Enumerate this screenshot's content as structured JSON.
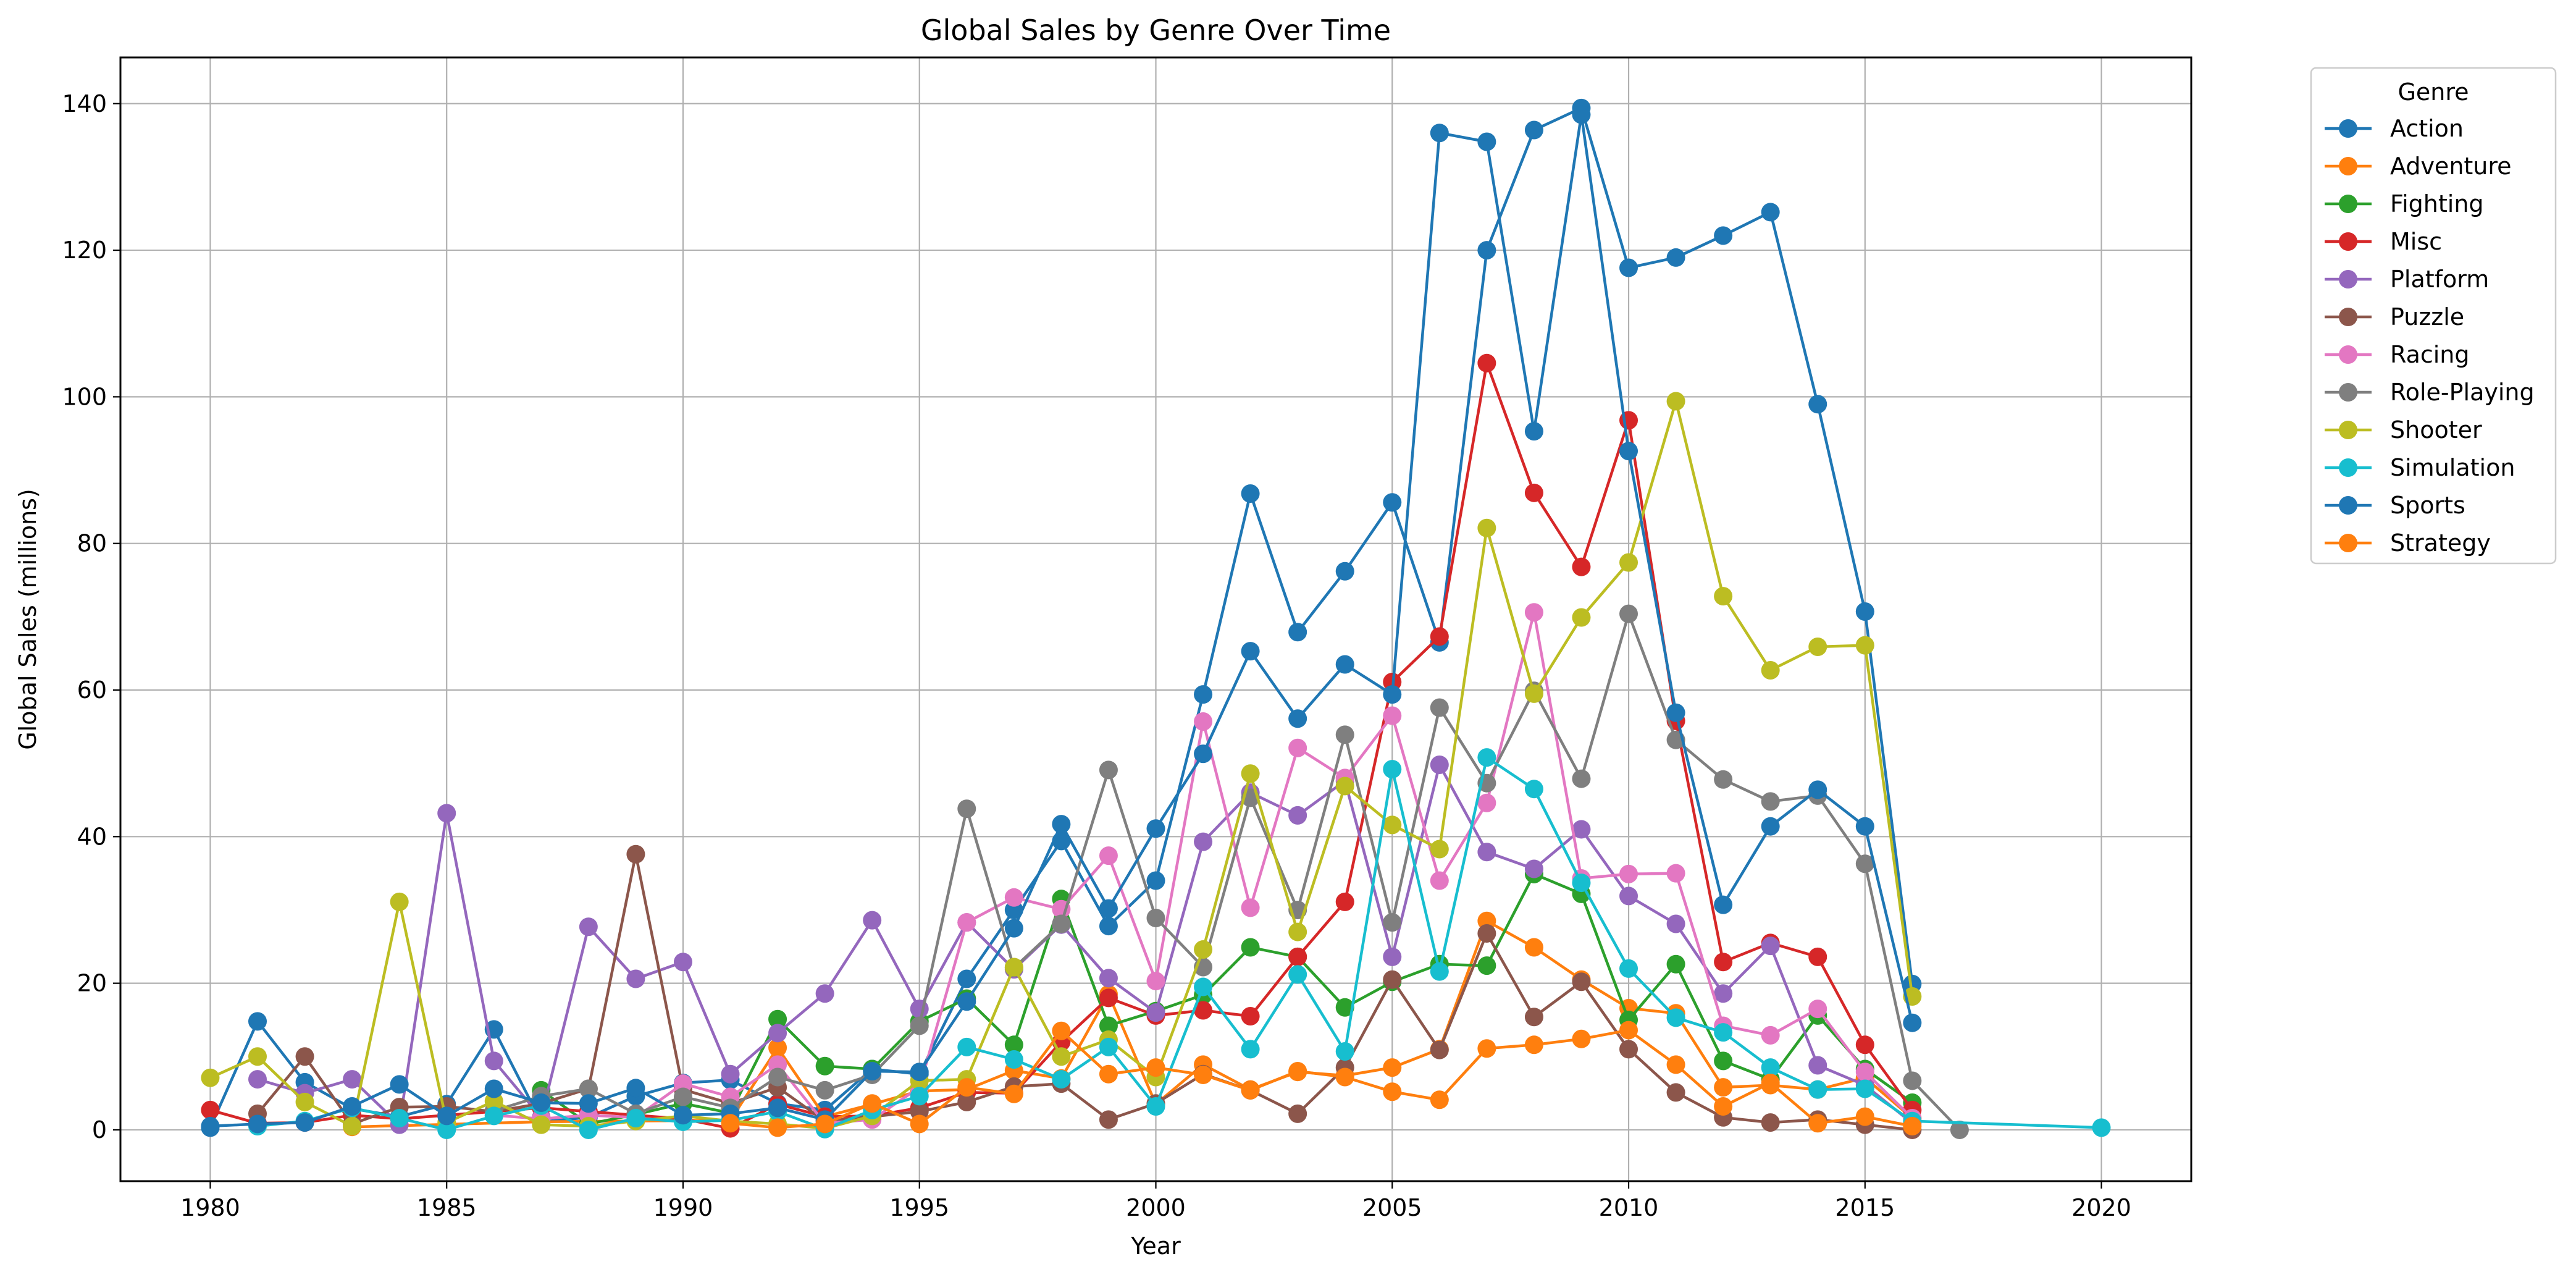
{
  "chart_data": {
    "type": "line",
    "title": "Global Sales by Genre Over Time",
    "xlabel": "Year",
    "ylabel": "Global Sales (millions)",
    "xlim": [
      1978.1,
      2021.9
    ],
    "ylim": [
      -7,
      146.3
    ],
    "xticks": [
      1980,
      1985,
      1990,
      1995,
      2000,
      2005,
      2010,
      2015,
      2020
    ],
    "yticks": [
      0,
      20,
      40,
      60,
      80,
      100,
      120,
      140
    ],
    "grid": true,
    "legend": {
      "title": "Genre",
      "placement": "outside upper right"
    },
    "series": [
      {
        "name": "Action",
        "color": "#1f77b4",
        "x": [
          1980,
          1981,
          1982,
          1983,
          1984,
          1985,
          1986,
          1987,
          1988,
          1989,
          1990,
          1991,
          1992,
          1993,
          1994,
          1995,
          1996,
          1997,
          1998,
          1999,
          2000,
          2001,
          2002,
          2003,
          2004,
          2005,
          2006,
          2007,
          2008,
          2009,
          2010,
          2011,
          2012,
          2013,
          2014,
          2015,
          2016
        ],
        "y": [
          0.3,
          14.8,
          6.5,
          2.9,
          1.8,
          3.5,
          13.7,
          1.1,
          1.7,
          4.6,
          6.4,
          6.8,
          3.6,
          2.7,
          8.3,
          7.6,
          20.6,
          30.0,
          39.4,
          27.8,
          34.0,
          59.4,
          86.8,
          67.9,
          76.2,
          85.6,
          66.5,
          120.0,
          136.4,
          139.4,
          117.6,
          119.0,
          122.0,
          125.2,
          99.0,
          70.7,
          19.9
        ]
      },
      {
        "name": "Adventure",
        "color": "#ff7f0e",
        "x": [
          1983,
          1987,
          1991,
          1992,
          1993,
          1994,
          1995,
          1996,
          1997,
          1998,
          1999,
          2000,
          2001,
          2002,
          2003,
          2004,
          2005,
          2006,
          2007,
          2008,
          2009,
          2010,
          2011,
          2012,
          2013,
          2014,
          2015,
          2016
        ],
        "y": [
          0.4,
          1.1,
          1.3,
          11.2,
          1.8,
          3.5,
          5.3,
          5.5,
          8.1,
          7.0,
          18.5,
          3.5,
          8.9,
          5.5,
          7.9,
          7.4,
          8.5,
          11.0,
          28.5,
          24.9,
          20.5,
          16.6,
          15.9,
          5.8,
          6.1,
          5.5,
          7.1,
          1.6
        ]
      },
      {
        "name": "Fighting",
        "color": "#2ca02c",
        "x": [
          1987,
          1988,
          1989,
          1990,
          1991,
          1992,
          1993,
          1994,
          1995,
          1996,
          1997,
          1998,
          1999,
          2000,
          2001,
          2002,
          2003,
          2004,
          2005,
          2006,
          2007,
          2008,
          2009,
          2010,
          2011,
          2012,
          2013,
          2014,
          2015,
          2016
        ],
        "y": [
          5.4,
          0.8,
          2.1,
          3.6,
          2.3,
          15.1,
          8.7,
          8.3,
          14.8,
          17.9,
          11.6,
          31.5,
          14.2,
          16.2,
          18.4,
          24.9,
          23.6,
          16.7,
          20.2,
          22.6,
          22.4,
          34.9,
          32.2,
          15.0,
          22.6,
          9.4,
          6.9,
          15.6,
          8.3,
          3.7
        ]
      },
      {
        "name": "Misc",
        "color": "#d62728",
        "x": [
          1980,
          1981,
          1982,
          1983,
          1984,
          1985,
          1986,
          1987,
          1988,
          1989,
          1990,
          1991,
          1992,
          1993,
          1994,
          1995,
          1996,
          1997,
          1998,
          1999,
          2000,
          2001,
          2002,
          2003,
          2004,
          2005,
          2006,
          2007,
          2008,
          2009,
          2010,
          2011,
          2012,
          2013,
          2014,
          2015,
          2016
        ],
        "y": [
          2.7,
          0.9,
          1.0,
          2.0,
          1.5,
          2.0,
          2.5,
          3.0,
          2.5,
          2.0,
          1.5,
          0.2,
          3.5,
          1.8,
          1.9,
          3.0,
          5.1,
          5.0,
          12.0,
          18.0,
          15.6,
          16.3,
          15.5,
          23.6,
          31.1,
          61.1,
          67.3,
          104.6,
          86.9,
          76.8,
          96.8,
          55.8,
          22.9,
          25.5,
          23.6,
          11.6,
          2.7
        ]
      },
      {
        "name": "Platform",
        "color": "#9467bd",
        "x": [
          1981,
          1982,
          1983,
          1984,
          1985,
          1986,
          1987,
          1988,
          1989,
          1990,
          1991,
          1992,
          1993,
          1994,
          1995,
          1996,
          1997,
          1998,
          1999,
          2000,
          2001,
          2002,
          2003,
          2004,
          2005,
          2006,
          2007,
          2008,
          2009,
          2010,
          2011,
          2012,
          2013,
          2014,
          2015,
          2016
        ],
        "y": [
          6.9,
          5.0,
          6.9,
          0.7,
          43.2,
          9.4,
          1.7,
          27.7,
          20.6,
          22.9,
          7.6,
          13.2,
          18.6,
          28.6,
          16.5,
          28.3,
          21.9,
          28.0,
          20.7,
          16.0,
          39.3,
          46.0,
          42.9,
          47.6,
          23.6,
          49.8,
          37.9,
          35.6,
          41.0,
          31.9,
          28.1,
          18.6,
          25.1,
          8.8,
          6.1,
          0.9
        ]
      },
      {
        "name": "Puzzle",
        "color": "#8c564b",
        "x": [
          1981,
          1982,
          1983,
          1984,
          1985,
          1986,
          1987,
          1988,
          1989,
          1990,
          1991,
          1992,
          1993,
          1994,
          1995,
          1996,
          1997,
          1998,
          1999,
          2000,
          2001,
          2002,
          2003,
          2004,
          2005,
          2006,
          2007,
          2008,
          2009,
          2010,
          2011,
          2012,
          2013,
          2014,
          2015,
          2016
        ],
        "y": [
          2.2,
          10.0,
          0.8,
          3.1,
          3.2,
          2.5,
          3.6,
          5.6,
          37.6,
          5.5,
          3.6,
          5.8,
          1.2,
          1.8,
          2.5,
          3.8,
          5.9,
          6.3,
          1.4,
          3.6,
          7.6,
          5.4,
          2.2,
          8.5,
          20.5,
          10.9,
          26.8,
          15.4,
          20.2,
          11.0,
          5.1,
          1.7,
          1.0,
          1.4,
          0.7,
          0.0
        ]
      },
      {
        "name": "Racing",
        "color": "#e377c2",
        "x": [
          1986,
          1987,
          1988,
          1989,
          1990,
          1991,
          1992,
          1993,
          1994,
          1995,
          1996,
          1997,
          1998,
          1999,
          2000,
          2001,
          2002,
          2003,
          2004,
          2005,
          2006,
          2007,
          2008,
          2009,
          2010,
          2011,
          2012,
          2013,
          2014,
          2015,
          2016
        ],
        "y": [
          2.0,
          1.5,
          2.0,
          1.7,
          6.3,
          4.5,
          8.9,
          0.9,
          1.4,
          5.8,
          28.3,
          31.7,
          30.1,
          37.4,
          20.3,
          55.7,
          30.3,
          52.1,
          48.0,
          56.5,
          34.0,
          44.6,
          70.6,
          34.3,
          34.9,
          35.0,
          14.2,
          12.9,
          16.5,
          7.9,
          1.6
        ]
      },
      {
        "name": "Role-Playing",
        "color": "#7f7f7f",
        "x": [
          1986,
          1987,
          1988,
          1989,
          1990,
          1991,
          1992,
          1993,
          1994,
          1995,
          1996,
          1997,
          1998,
          1999,
          2000,
          2001,
          2002,
          2003,
          2004,
          2005,
          2006,
          2007,
          2008,
          2009,
          2010,
          2011,
          2012,
          2013,
          2014,
          2015,
          2016,
          2017
        ],
        "y": [
          2.6,
          4.6,
          5.6,
          2.2,
          4.5,
          3.0,
          7.2,
          5.4,
          7.5,
          14.2,
          43.8,
          22.1,
          28.1,
          49.1,
          28.9,
          22.2,
          45.3,
          30.0,
          53.9,
          28.3,
          57.6,
          47.3,
          59.9,
          47.9,
          70.4,
          53.2,
          47.8,
          44.8,
          45.6,
          36.3,
          6.7,
          0.0
        ]
      },
      {
        "name": "Shooter",
        "color": "#bcbd22",
        "x": [
          1980,
          1981,
          1982,
          1983,
          1984,
          1985,
          1986,
          1987,
          1988,
          1989,
          1990,
          1991,
          1992,
          1993,
          1994,
          1995,
          1996,
          1997,
          1998,
          1999,
          2000,
          2001,
          2002,
          2003,
          2004,
          2005,
          2006,
          2007,
          2008,
          2009,
          2010,
          2011,
          2012,
          2013,
          2014,
          2015,
          2016
        ],
        "y": [
          7.1,
          10.0,
          3.8,
          0.5,
          31.1,
          1.0,
          3.9,
          0.7,
          0.5,
          1.2,
          1.9,
          1.2,
          0.8,
          0.2,
          1.9,
          6.7,
          6.9,
          22.2,
          10.0,
          12.3,
          7.2,
          24.6,
          48.6,
          27.0,
          46.9,
          41.6,
          38.3,
          82.1,
          59.5,
          69.9,
          77.4,
          99.4,
          72.8,
          62.7,
          65.9,
          66.1,
          18.2
        ]
      },
      {
        "name": "Simulation",
        "color": "#17becf",
        "x": [
          1981,
          1982,
          1983,
          1984,
          1985,
          1986,
          1987,
          1988,
          1989,
          1990,
          1991,
          1992,
          1993,
          1994,
          1995,
          1996,
          1997,
          1998,
          1999,
          2000,
          2001,
          2002,
          2003,
          2004,
          2005,
          2006,
          2007,
          2008,
          2009,
          2010,
          2011,
          2012,
          2013,
          2014,
          2015,
          2016,
          2020
        ],
        "y": [
          0.5,
          1.2,
          3.0,
          1.6,
          0.0,
          1.9,
          3.3,
          0.0,
          1.6,
          1.1,
          1.3,
          2.5,
          0.1,
          2.7,
          4.6,
          11.3,
          9.6,
          6.9,
          11.3,
          3.2,
          19.5,
          11.0,
          21.2,
          10.7,
          49.2,
          21.6,
          50.8,
          46.5,
          33.7,
          22.0,
          15.3,
          13.3,
          8.5,
          5.5,
          5.6,
          1.2,
          0.3
        ]
      },
      {
        "name": "Sports",
        "color": "#1f77b4",
        "x": [
          1980,
          1981,
          1982,
          1983,
          1984,
          1985,
          1986,
          1987,
          1988,
          1989,
          1990,
          1991,
          1992,
          1993,
          1994,
          1995,
          1996,
          1997,
          1998,
          1999,
          2000,
          2001,
          2002,
          2003,
          2004,
          2005,
          2006,
          2007,
          2008,
          2009,
          2010,
          2011,
          2012,
          2013,
          2014,
          2015,
          2016
        ],
        "y": [
          0.5,
          0.8,
          1.0,
          3.2,
          6.2,
          1.9,
          5.6,
          3.7,
          3.6,
          5.7,
          2.0,
          2.2,
          3.0,
          1.4,
          8.0,
          7.9,
          17.5,
          27.5,
          41.7,
          30.2,
          41.1,
          51.3,
          65.3,
          56.1,
          63.5,
          59.4,
          136.0,
          134.8,
          95.3,
          138.5,
          92.6,
          56.9,
          30.7,
          41.4,
          46.4,
          41.4,
          14.6
        ]
      },
      {
        "name": "Strategy",
        "color": "#ff7f0e",
        "x": [
          1991,
          1992,
          1993,
          1994,
          1995,
          1996,
          1997,
          1998,
          1999,
          2000,
          2001,
          2002,
          2003,
          2004,
          2005,
          2006,
          2007,
          2008,
          2009,
          2010,
          2011,
          2012,
          2013,
          2014,
          2015,
          2016
        ],
        "y": [
          0.9,
          0.3,
          0.8,
          3.6,
          0.8,
          5.8,
          4.9,
          13.5,
          7.6,
          8.5,
          7.5,
          5.4,
          8.0,
          7.2,
          5.2,
          4.1,
          11.1,
          11.6,
          12.4,
          13.6,
          8.9,
          3.2,
          6.4,
          0.9,
          1.8,
          0.5
        ]
      }
    ]
  }
}
